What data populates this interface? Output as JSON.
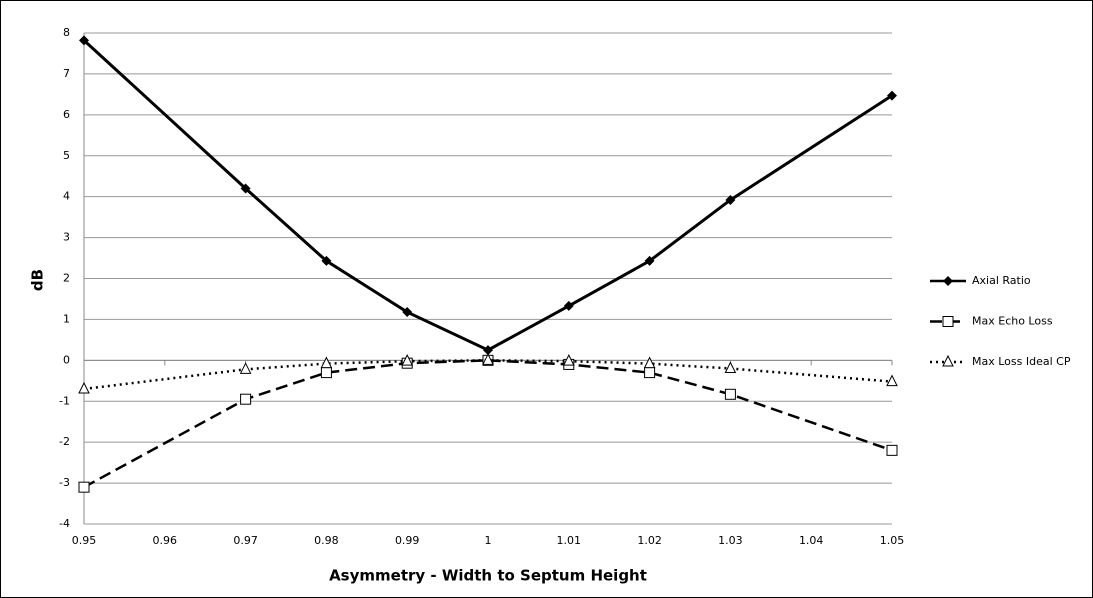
{
  "chart_data": {
    "type": "line",
    "x_label": "Asymmetry  - Width to Septum Height",
    "y_label": "dB",
    "x": [
      0.95,
      0.97,
      0.98,
      0.99,
      1,
      1.01,
      1.02,
      1.03,
      1.05
    ],
    "series": [
      {
        "name": "Axial Ratio",
        "color": "#000000",
        "dash": "solid",
        "marker": "diamond",
        "values": [
          7.82,
          4.2,
          2.43,
          1.18,
          0.25,
          1.33,
          2.43,
          3.92,
          6.47
        ]
      },
      {
        "name": "Max Echo Loss",
        "color": "#000000",
        "dash": "dashed",
        "marker": "square",
        "values": [
          -3.1,
          -0.95,
          -0.3,
          -0.07,
          0,
          -0.1,
          -0.3,
          -0.83,
          -2.2
        ]
      },
      {
        "name": "Max Loss Ideal CP",
        "color": "#000000",
        "dash": "dotted",
        "marker": "triangle",
        "values": [
          -0.7,
          -0.22,
          -0.08,
          -0.02,
          0,
          -0.02,
          -0.08,
          -0.2,
          -0.52
        ]
      }
    ],
    "xlim": [
      0.95,
      1.05
    ],
    "xticks": [
      0.95,
      0.96,
      0.97,
      0.98,
      0.99,
      1,
      1.01,
      1.02,
      1.03,
      1.04,
      1.05
    ],
    "ylim": [
      -4,
      8
    ],
    "yticks": [
      -4,
      -3,
      -2,
      -1,
      0,
      1,
      2,
      3,
      4,
      5,
      6,
      7,
      8
    ],
    "grid": true,
    "legend": "right"
  }
}
